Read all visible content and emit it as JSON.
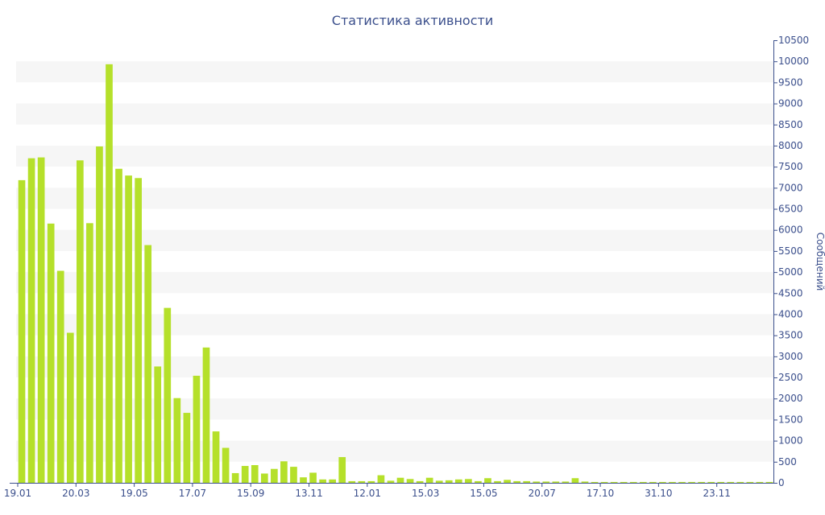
{
  "chart_data": {
    "type": "bar",
    "title": "Статистика активности",
    "xlabel": "",
    "ylabel": "Сообщений",
    "ylim": [
      0,
      10500
    ],
    "y_ticks": [
      0,
      500,
      1000,
      1500,
      2000,
      2500,
      3000,
      3500,
      4000,
      4500,
      5000,
      5500,
      6000,
      6500,
      7000,
      7500,
      8000,
      8500,
      9000,
      9500,
      10000,
      10500
    ],
    "x_tick_labels": [
      {
        "label": "19.01",
        "index": 0
      },
      {
        "label": "20.03",
        "index": 6
      },
      {
        "label": "19.05",
        "index": 12
      },
      {
        "label": "17.07",
        "index": 18
      },
      {
        "label": "15.09",
        "index": 24
      },
      {
        "label": "13.11",
        "index": 30
      },
      {
        "label": "12.01",
        "index": 36
      },
      {
        "label": "15.03",
        "index": 42
      },
      {
        "label": "15.05",
        "index": 48
      },
      {
        "label": "20.07",
        "index": 54
      },
      {
        "label": "17.10",
        "index": 60
      },
      {
        "label": "31.10",
        "index": 66
      },
      {
        "label": "23.11",
        "index": 72
      }
    ],
    "grid": "horizontal bands",
    "bar_color": "#b5e02a",
    "values": [
      7180,
      7700,
      7720,
      6150,
      5030,
      3560,
      7650,
      6160,
      7980,
      9930,
      7450,
      7290,
      7230,
      5640,
      2760,
      4150,
      2010,
      1660,
      2540,
      3210,
      1220,
      830,
      230,
      400,
      420,
      220,
      330,
      510,
      380,
      130,
      240,
      80,
      80,
      610,
      40,
      40,
      40,
      180,
      50,
      120,
      90,
      40,
      120,
      50,
      60,
      80,
      90,
      40,
      110,
      40,
      70,
      40,
      40,
      30,
      30,
      30,
      30,
      110,
      30,
      20,
      20,
      20,
      20,
      20,
      20,
      20,
      20,
      20,
      20,
      20,
      20,
      20,
      20,
      20,
      20,
      20,
      20,
      20
    ]
  }
}
